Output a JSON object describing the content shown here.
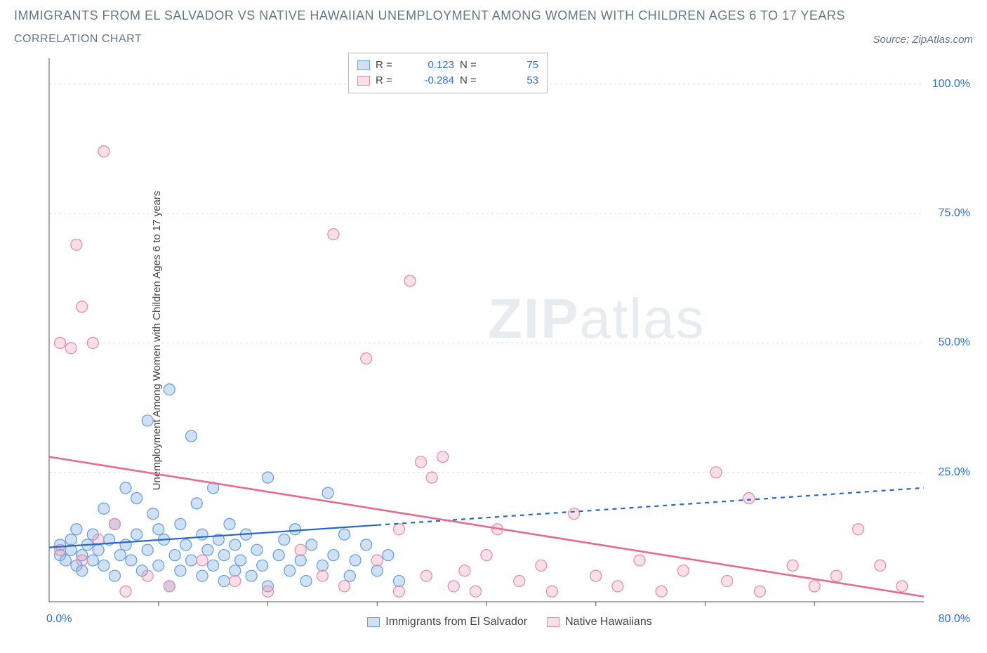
{
  "title": "IMMIGRANTS FROM EL SALVADOR VS NATIVE HAWAIIAN UNEMPLOYMENT AMONG WOMEN WITH CHILDREN AGES 6 TO 17 YEARS",
  "subtitle": "CORRELATION CHART",
  "source": "Source: ZipAtlas.com",
  "ylabel": "Unemployment Among Women with Children Ages 6 to 17 years",
  "watermark_a": "ZIP",
  "watermark_b": "atlas",
  "chart": {
    "type": "scatter",
    "background_color": "#ffffff",
    "grid_color": "#dcdcdc",
    "xlim": [
      0,
      80
    ],
    "ylim": [
      0,
      105
    ],
    "ytick_values": [
      25,
      50,
      75,
      100
    ],
    "ytick_labels": [
      "25.0%",
      "50.0%",
      "75.0%",
      "100.0%"
    ],
    "xtick_zero": "0.0%",
    "xtick_max": "80.0%",
    "marker_radius": 8,
    "marker_stroke": 1.3,
    "series": [
      {
        "name": "Immigrants from El Salvador",
        "fill": "rgba(120,170,230,0.35)",
        "stroke": "#6aa3e0",
        "R_label": "R =",
        "R_value": "0.123",
        "N_label": "N =",
        "N_value": "75",
        "trend": {
          "y_at_x0": 10.5,
          "y_at_xmax": 22,
          "solid_until_x": 30,
          "stroke": "#2768c9",
          "width": 2.2
        },
        "points": [
          [
            1,
            9
          ],
          [
            1,
            11
          ],
          [
            1.5,
            8
          ],
          [
            2,
            10
          ],
          [
            2,
            12
          ],
          [
            2.5,
            7
          ],
          [
            2.5,
            14
          ],
          [
            3,
            9
          ],
          [
            3,
            6
          ],
          [
            3.5,
            11
          ],
          [
            4,
            8
          ],
          [
            4,
            13
          ],
          [
            4.5,
            10
          ],
          [
            5,
            7
          ],
          [
            5,
            18
          ],
          [
            5.5,
            12
          ],
          [
            6,
            5
          ],
          [
            6,
            15
          ],
          [
            6.5,
            9
          ],
          [
            7,
            22
          ],
          [
            7,
            11
          ],
          [
            7.5,
            8
          ],
          [
            8,
            13
          ],
          [
            8,
            20
          ],
          [
            8.5,
            6
          ],
          [
            9,
            35
          ],
          [
            9,
            10
          ],
          [
            9.5,
            17
          ],
          [
            10,
            7
          ],
          [
            10,
            14
          ],
          [
            10.5,
            12
          ],
          [
            11,
            3
          ],
          [
            11,
            41
          ],
          [
            11.5,
            9
          ],
          [
            12,
            15
          ],
          [
            12,
            6
          ],
          [
            12.5,
            11
          ],
          [
            13,
            32
          ],
          [
            13,
            8
          ],
          [
            13.5,
            19
          ],
          [
            14,
            5
          ],
          [
            14,
            13
          ],
          [
            14.5,
            10
          ],
          [
            15,
            7
          ],
          [
            15,
            22
          ],
          [
            15.5,
            12
          ],
          [
            16,
            4
          ],
          [
            16,
            9
          ],
          [
            16.5,
            15
          ],
          [
            17,
            6
          ],
          [
            17,
            11
          ],
          [
            17.5,
            8
          ],
          [
            18,
            13
          ],
          [
            18.5,
            5
          ],
          [
            19,
            10
          ],
          [
            19.5,
            7
          ],
          [
            20,
            24
          ],
          [
            20,
            3
          ],
          [
            21,
            9
          ],
          [
            21.5,
            12
          ],
          [
            22,
            6
          ],
          [
            22.5,
            14
          ],
          [
            23,
            8
          ],
          [
            23.5,
            4
          ],
          [
            24,
            11
          ],
          [
            25,
            7
          ],
          [
            25.5,
            21
          ],
          [
            26,
            9
          ],
          [
            27,
            13
          ],
          [
            27.5,
            5
          ],
          [
            28,
            8
          ],
          [
            29,
            11
          ],
          [
            30,
            6
          ],
          [
            31,
            9
          ],
          [
            32,
            4
          ]
        ]
      },
      {
        "name": "Native Hawaiians",
        "fill": "rgba(235,150,175,0.3)",
        "stroke": "#e58fab",
        "R_label": "R =",
        "R_value": "-0.284",
        "N_label": "N =",
        "N_value": "53",
        "trend": {
          "y_at_x0": 28,
          "y_at_xmax": 1,
          "solid_until_x": 80,
          "stroke": "#e86a8e",
          "width": 2.6
        },
        "points": [
          [
            1,
            50
          ],
          [
            1,
            10
          ],
          [
            2,
            49
          ],
          [
            2.5,
            69
          ],
          [
            3,
            57
          ],
          [
            3,
            8
          ],
          [
            4,
            50
          ],
          [
            4.5,
            12
          ],
          [
            5,
            87
          ],
          [
            6,
            15
          ],
          [
            7,
            2
          ],
          [
            9,
            5
          ],
          [
            11,
            3
          ],
          [
            14,
            8
          ],
          [
            17,
            4
          ],
          [
            20,
            2
          ],
          [
            23,
            10
          ],
          [
            25,
            5
          ],
          [
            26,
            71
          ],
          [
            27,
            3
          ],
          [
            29,
            47
          ],
          [
            30,
            8
          ],
          [
            32,
            14
          ],
          [
            32,
            2
          ],
          [
            33,
            62
          ],
          [
            34,
            27
          ],
          [
            34.5,
            5
          ],
          [
            35,
            24
          ],
          [
            36,
            28
          ],
          [
            37,
            3
          ],
          [
            38,
            6
          ],
          [
            39,
            2
          ],
          [
            40,
            9
          ],
          [
            41,
            14
          ],
          [
            43,
            4
          ],
          [
            45,
            7
          ],
          [
            46,
            2
          ],
          [
            48,
            17
          ],
          [
            50,
            5
          ],
          [
            52,
            3
          ],
          [
            54,
            8
          ],
          [
            56,
            2
          ],
          [
            58,
            6
          ],
          [
            61,
            25
          ],
          [
            62,
            4
          ],
          [
            64,
            20
          ],
          [
            65,
            2
          ],
          [
            68,
            7
          ],
          [
            70,
            3
          ],
          [
            72,
            5
          ],
          [
            74,
            14
          ],
          [
            76,
            7
          ],
          [
            78,
            3
          ]
        ]
      }
    ],
    "bottom_legend": [
      {
        "label": "Immigrants from El Salvador",
        "fill": "rgba(120,170,230,0.35)",
        "stroke": "#6aa3e0"
      },
      {
        "label": "Native Hawaiians",
        "fill": "rgba(235,150,175,0.3)",
        "stroke": "#e58fab"
      }
    ]
  }
}
